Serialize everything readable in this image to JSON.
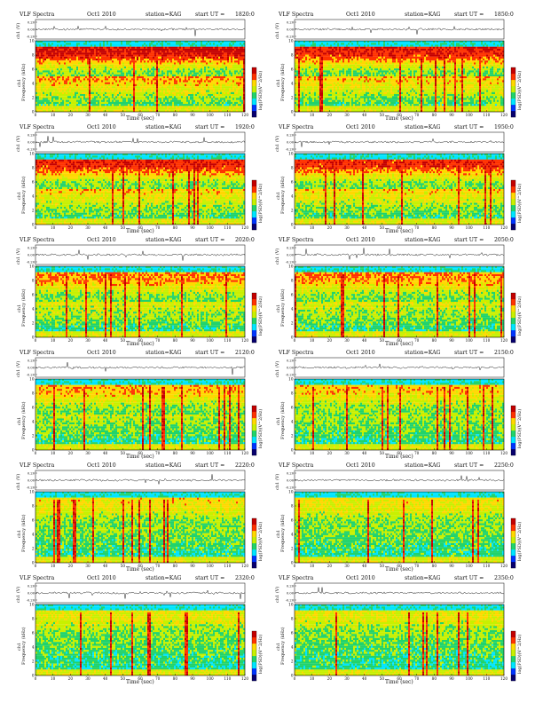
{
  "page": {
    "title": "VLF Spectra"
  },
  "panel_header": {
    "title": "VLF Spectra",
    "date": "Oct1 2010",
    "station": "station=KAG",
    "start_prefix": "start UT ="
  },
  "panels": [
    {
      "start_ut": "1820:0",
      "channel": "ch1"
    },
    {
      "start_ut": "1850:0",
      "channel": "ch1"
    },
    {
      "start_ut": "1920:0",
      "channel": "ch1"
    },
    {
      "start_ut": "1950:0",
      "channel": "ch1"
    },
    {
      "start_ut": "2020:0",
      "channel": "ch1"
    },
    {
      "start_ut": "2050:0",
      "channel": "ch1"
    },
    {
      "start_ut": "2120:0",
      "channel": "ch1"
    },
    {
      "start_ut": "2150:0",
      "channel": "ch1"
    },
    {
      "start_ut": "2220:0",
      "channel": "ch1"
    },
    {
      "start_ut": "2250:0",
      "channel": "ch1"
    },
    {
      "start_ut": "2320:0",
      "channel": "ch1"
    },
    {
      "start_ut": "2350:0",
      "channel": "ch1"
    }
  ],
  "labels": {
    "waveform_ylabel": "ch1 (V)",
    "spectro_ylabel": "Frequency (kHz)",
    "xlabel": "Time (sec)",
    "colorbar_label": "log(PSD)(V^2/Hz)"
  },
  "chart_data": {
    "type": "heatmap",
    "layout": "6 rows x 2 columns of time-frequency spectrograms with waveform strips",
    "x": {
      "label": "Time (sec)",
      "range": [
        0,
        120
      ],
      "ticks": [
        0,
        10,
        20,
        30,
        40,
        50,
        60,
        70,
        80,
        90,
        100,
        110,
        120
      ]
    },
    "y": {
      "label": "Frequency (kHz)",
      "range": [
        0,
        10
      ],
      "ticks": [
        0,
        2,
        4,
        6,
        8,
        10
      ]
    },
    "waveform": {
      "label": "ch1 (V)",
      "ticks": [
        "-0.20",
        "0.00",
        "0.20"
      ]
    },
    "colorbar": {
      "label": "log(PSD)(V^2/Hz)",
      "colors": [
        "#08006e",
        "#0035ff",
        "#00e5ff",
        "#21d36b",
        "#c8f000",
        "#ffd800",
        "#ff3200",
        "#c40000"
      ]
    },
    "activity_level": [
      1.0,
      0.9,
      0.85,
      0.82,
      0.62,
      0.6,
      0.5,
      0.45,
      0.38,
      0.36,
      0.3,
      0.28
    ],
    "grid": false,
    "legend": "colorbar-right"
  }
}
